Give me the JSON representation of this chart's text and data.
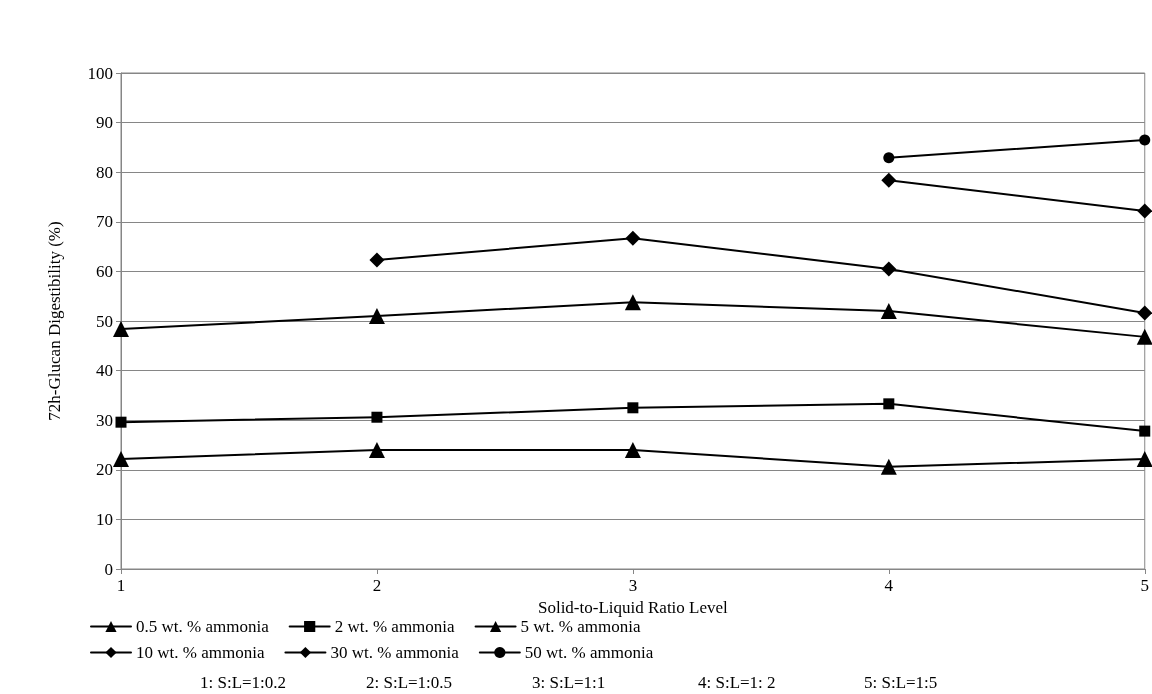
{
  "chart_data": {
    "type": "line",
    "xlabel": "Solid-to-Liquid Ratio Level",
    "ylabel": "72h-Glucan Digestibility (%)",
    "x": [
      1,
      2,
      3,
      4,
      5
    ],
    "xlim": [
      1,
      5
    ],
    "xticks": [
      1,
      2,
      3,
      4,
      5
    ],
    "ylim": [
      0,
      100
    ],
    "yticks": [
      0,
      10,
      20,
      30,
      40,
      50,
      60,
      70,
      80,
      90,
      100
    ],
    "grid": "y",
    "legend": "bottom",
    "line_style": "solid",
    "series": [
      {
        "name": "0.5 wt. % ammonia",
        "color": "#000000",
        "marker": "triangle",
        "values": [
          22.2,
          24.0,
          24.0,
          20.6,
          22.2
        ]
      },
      {
        "name": "2 wt. % ammonia",
        "color": "#000000",
        "marker": "square",
        "values": [
          29.6,
          30.6,
          32.5,
          33.3,
          27.8
        ]
      },
      {
        "name": "5 wt. % ammonia",
        "color": "#000000",
        "marker": "triangle",
        "values": [
          48.4,
          51.0,
          53.8,
          52.0,
          46.8
        ]
      },
      {
        "name": "10 wt. % ammonia",
        "color": "#000000",
        "marker": "diamond",
        "values": [
          null,
          62.3,
          66.7,
          60.5,
          51.6
        ]
      },
      {
        "name": "30 wt. % ammonia",
        "color": "#000000",
        "marker": "diamond",
        "values": [
          null,
          null,
          null,
          78.4,
          72.2
        ]
      },
      {
        "name": "50 wt. % ammonia",
        "color": "#000000",
        "marker": "circle",
        "values": [
          null,
          null,
          null,
          82.9,
          86.5
        ]
      }
    ],
    "annotations": [
      "1: S:L=1:0.2",
      "2: S:L=1:0.5",
      "3: S:L=1:1",
      "4: S:L=1: 2",
      "5: S:L=1:5"
    ]
  }
}
